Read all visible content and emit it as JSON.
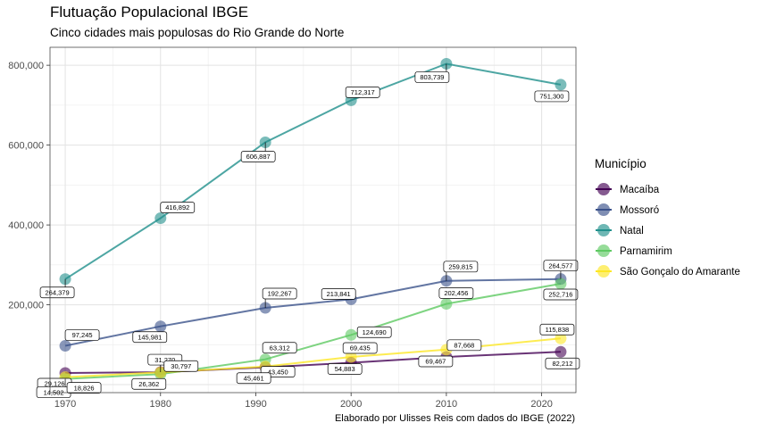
{
  "title": "Flutuação Populacional IBGE",
  "subtitle": "Cinco cidades mais populosas do Rio Grande do Norte",
  "caption": "Elaborado por Ulisses Reis com dados do IBGE (2022)",
  "legend_title": "Município",
  "chart_data": {
    "type": "line",
    "x": [
      1970,
      1980,
      1991,
      2000,
      2010,
      2022
    ],
    "xticks": [
      "1970",
      "1980",
      "1990",
      "2000",
      "2010",
      "2020"
    ],
    "xtick_values": [
      1970,
      1980,
      1990,
      2000,
      2010,
      2020
    ],
    "yticks": [
      "0",
      "200,000",
      "400,000",
      "600,000",
      "800,000"
    ],
    "ytick_values": [
      0,
      200000,
      400000,
      600000,
      800000
    ],
    "xlim": [
      1968.4,
      2023.6
    ],
    "ylim": [
      -20000,
      845000
    ],
    "grid": true,
    "legend_position": "right",
    "series": [
      {
        "name": "Macaíba",
        "color": "#440154",
        "values": [
          29126,
          31270,
          43450,
          54883,
          69467,
          82212
        ],
        "labels": [
          "29,126",
          "31,270",
          "43,450",
          "54,883",
          "69,467",
          "82,212"
        ]
      },
      {
        "name": "Mossoró",
        "color": "#3b528b",
        "values": [
          97245,
          145981,
          192267,
          213841,
          259815,
          264577
        ],
        "labels": [
          "97,245",
          "145,981",
          "192,267",
          "213,841",
          "259,815",
          "264,577"
        ]
      },
      {
        "name": "Natal",
        "color": "#21908c",
        "values": [
          264379,
          416892,
          606887,
          712317,
          803739,
          751300
        ],
        "labels": [
          "264,379",
          "416,892",
          "606,887",
          "712,317",
          "803,739",
          "751,300"
        ]
      },
      {
        "name": "Parnamirim",
        "color": "#5ec962",
        "values": [
          14502,
          26362,
          63312,
          124690,
          202456,
          252716
        ],
        "labels": [
          "14,502",
          "26,362",
          "63,312",
          "124,690",
          "202,456",
          "252,716"
        ]
      },
      {
        "name": "São Gonçalo do Amarante",
        "color": "#fde725",
        "values": [
          18826,
          30797,
          45461,
          69435,
          87668,
          115838
        ],
        "labels": [
          "18,826",
          "30,797",
          "45,461",
          "69,435",
          "87,668",
          "115,838"
        ]
      }
    ]
  }
}
